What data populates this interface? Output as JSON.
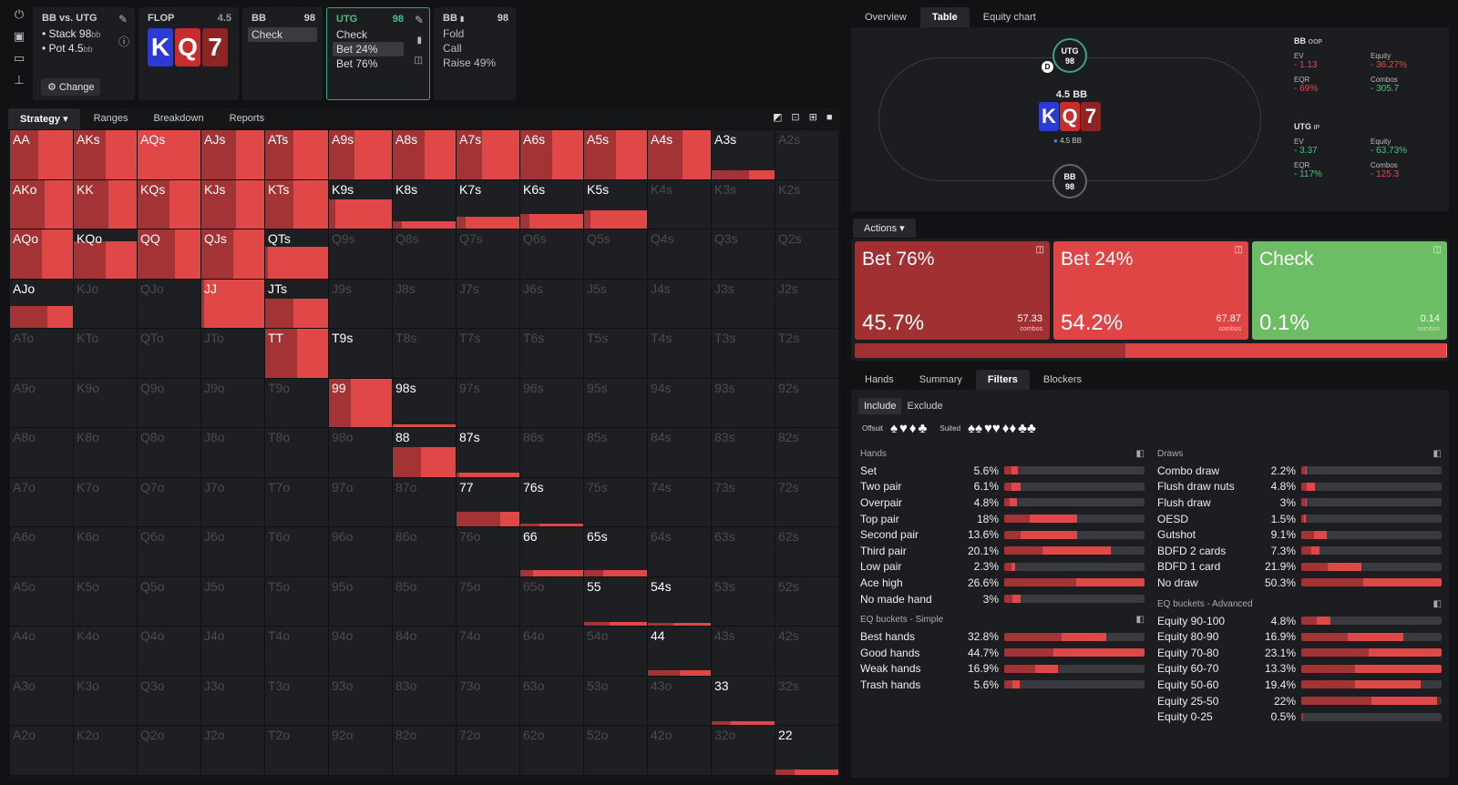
{
  "players_box": {
    "title": "BB vs. UTG",
    "stack": "Stack 98",
    "stack_unit": "bb",
    "pot": "Pot 4.5",
    "pot_unit": "bb",
    "change": "Change"
  },
  "flop_box": {
    "title": "FLOP",
    "pot": "4.5",
    "cards": [
      "K",
      "Q",
      "7"
    ]
  },
  "bb_box": {
    "title": "BB",
    "stack": "98",
    "action": "Check"
  },
  "utg_box": {
    "title": "UTG",
    "stack": "98",
    "actions": [
      "Check",
      "Bet 24%",
      "Bet 76%"
    ]
  },
  "bb2_box": {
    "title": "BB",
    "stack": "98",
    "actions": [
      "Fold",
      "Call",
      "Raise 49%"
    ]
  },
  "left_tabs": [
    "Strategy",
    "Ranges",
    "Breakdown",
    "Reports"
  ],
  "right_tabs": [
    "Overview",
    "Table",
    "Equity chart"
  ],
  "grid": [
    [
      "AA",
      "AKs",
      "AQs",
      "AJs",
      "ATs",
      "A9s",
      "A8s",
      "A7s",
      "A6s",
      "A5s",
      "A4s",
      "A3s",
      "A2s"
    ],
    [
      "AKo",
      "KK",
      "KQs",
      "KJs",
      "KTs",
      "K9s",
      "K8s",
      "K7s",
      "K6s",
      "K5s",
      "K4s",
      "K3s",
      "K2s"
    ],
    [
      "AQo",
      "KQo",
      "QQ",
      "QJs",
      "QTs",
      "Q9s",
      "Q8s",
      "Q7s",
      "Q6s",
      "Q5s",
      "Q4s",
      "Q3s",
      "Q2s"
    ],
    [
      "AJo",
      "KJo",
      "QJo",
      "JJ",
      "JTs",
      "J9s",
      "J8s",
      "J7s",
      "J6s",
      "J5s",
      "J4s",
      "J3s",
      "J2s"
    ],
    [
      "ATo",
      "KTo",
      "QTo",
      "JTo",
      "TT",
      "T9s",
      "T8s",
      "T7s",
      "T6s",
      "T5s",
      "T4s",
      "T3s",
      "T2s"
    ],
    [
      "A9o",
      "K9o",
      "Q9o",
      "J9o",
      "T9o",
      "99",
      "98s",
      "97s",
      "96s",
      "95s",
      "94s",
      "93s",
      "92s"
    ],
    [
      "A8o",
      "K8o",
      "Q8o",
      "J8o",
      "T8o",
      "98o",
      "88",
      "87s",
      "86s",
      "85s",
      "84s",
      "83s",
      "82s"
    ],
    [
      "A7o",
      "K7o",
      "Q7o",
      "J7o",
      "T7o",
      "97o",
      "87o",
      "77",
      "76s",
      "75s",
      "74s",
      "73s",
      "72s"
    ],
    [
      "A6o",
      "K6o",
      "Q6o",
      "J6o",
      "T6o",
      "96o",
      "86o",
      "76o",
      "66",
      "65s",
      "64s",
      "63s",
      "62s"
    ],
    [
      "A5o",
      "K5o",
      "Q5o",
      "J5o",
      "T5o",
      "95o",
      "85o",
      "75o",
      "65o",
      "55",
      "54s",
      "53s",
      "52s"
    ],
    [
      "A4o",
      "K4o",
      "Q4o",
      "J4o",
      "T4o",
      "94o",
      "84o",
      "74o",
      "64o",
      "54o",
      "44",
      "43s",
      "42s"
    ],
    [
      "A3o",
      "K3o",
      "Q3o",
      "J3o",
      "T3o",
      "93o",
      "83o",
      "73o",
      "63o",
      "53o",
      "43o",
      "33",
      "32s"
    ],
    [
      "A2o",
      "K2o",
      "Q2o",
      "J2o",
      "T2o",
      "92o",
      "82o",
      "72o",
      "62o",
      "52o",
      "42o",
      "32o",
      "22"
    ]
  ],
  "table": {
    "utg_seat": "UTG",
    "utg_stack": "98",
    "bb_seat": "BB",
    "bb_stack": "98",
    "pot": "4.5 BB",
    "pot_chip": "4.5 BB",
    "dealer": "D",
    "cards": [
      "K",
      "Q",
      "7"
    ]
  },
  "bb_stats": {
    "header": "BB",
    "pos": "OOP",
    "ev_label": "EV",
    "ev": "- 1.13",
    "eq_label": "Equity",
    "eq": "- 36.27%",
    "eqr_label": "EQR",
    "eqr": "- 69%",
    "combos_label": "Combos",
    "combos": "- 305.7"
  },
  "utg_stats": {
    "header": "UTG",
    "pos": "IP",
    "ev_label": "EV",
    "ev": "- 3.37",
    "eq_label": "Equity",
    "eq": "- 63.73%",
    "eqr_label": "EQR",
    "eqr": "- 117%",
    "combos_label": "Combos",
    "combos": "- 125.3"
  },
  "actions_label": "Actions",
  "action_boxes": [
    {
      "name": "Bet 76%",
      "pct": "45.7%",
      "combos": "57.33",
      "unit": "combos",
      "color": "#a03031"
    },
    {
      "name": "Bet 24%",
      "pct": "54.2%",
      "combos": "67.87",
      "unit": "combos",
      "color": "#e04545"
    },
    {
      "name": "Check",
      "pct": "0.1%",
      "combos": "0.14",
      "unit": "combos",
      "color": "#6cbd63"
    }
  ],
  "action_split": [
    45.7,
    54.2,
    0.1
  ],
  "bottom_tabs": [
    "Hands",
    "Summary",
    "Filters",
    "Blockers"
  ],
  "include": "Include",
  "exclude": "Exclude",
  "offsuit": "Offsuit",
  "suited": "Suited",
  "hands_title": "Hands",
  "hands": [
    {
      "n": "Set",
      "v": "5.6%",
      "a": 5,
      "b": 5
    },
    {
      "n": "Two pair",
      "v": "6.1%",
      "a": 5,
      "b": 7
    },
    {
      "n": "Overpair",
      "v": "4.8%",
      "a": 4,
      "b": 5
    },
    {
      "n": "Top pair",
      "v": "18%",
      "a": 18,
      "b": 34
    },
    {
      "n": "Second pair",
      "v": "13.6%",
      "a": 12,
      "b": 40
    },
    {
      "n": "Third pair",
      "v": "20.1%",
      "a": 27,
      "b": 49
    },
    {
      "n": "Low pair",
      "v": "2.3%",
      "a": 5,
      "b": 3
    },
    {
      "n": "Ace high",
      "v": "26.6%",
      "a": 51,
      "b": 49
    },
    {
      "n": "No made hand",
      "v": "3%",
      "a": 6,
      "b": 6
    }
  ],
  "eqs_title": "EQ buckets - Simple",
  "eqs": [
    {
      "n": "Best hands",
      "v": "32.8%",
      "a": 41,
      "b": 32
    },
    {
      "n": "Good hands",
      "v": "44.7%",
      "a": 35,
      "b": 65
    },
    {
      "n": "Weak hands",
      "v": "16.9%",
      "a": 22,
      "b": 16
    },
    {
      "n": "Trash hands",
      "v": "5.6%",
      "a": 6,
      "b": 5
    }
  ],
  "draws_title": "Draws",
  "draws": [
    {
      "n": "Combo draw",
      "v": "2.2%",
      "a": 3,
      "b": 1
    },
    {
      "n": "Flush draw nuts",
      "v": "4.8%",
      "a": 4,
      "b": 6
    },
    {
      "n": "Flush draw",
      "v": "3%",
      "a": 3,
      "b": 1
    },
    {
      "n": "OESD",
      "v": "1.5%",
      "a": 2,
      "b": 1
    },
    {
      "n": "Gutshot",
      "v": "9.1%",
      "a": 9,
      "b": 9
    },
    {
      "n": "BDFD 2 cards",
      "v": "7.3%",
      "a": 7,
      "b": 6
    },
    {
      "n": "BDFD 1 card",
      "v": "21.9%",
      "a": 19,
      "b": 24
    },
    {
      "n": "No draw",
      "v": "50.3%",
      "a": 44,
      "b": 56
    }
  ],
  "eqa_title": "EQ buckets - Advanced",
  "eqa": [
    {
      "n": "Equity 90-100",
      "v": "4.8%",
      "a": 11,
      "b": 10
    },
    {
      "n": "Equity 80-90",
      "v": "16.9%",
      "a": 33,
      "b": 40
    },
    {
      "n": "Equity 70-80",
      "v": "23.1%",
      "a": 48,
      "b": 52
    },
    {
      "n": "Equity 60-70",
      "v": "13.3%",
      "a": 38,
      "b": 62
    },
    {
      "n": "Equity 50-60",
      "v": "19.4%",
      "a": 38,
      "b": 47
    },
    {
      "n": "Equity 25-50",
      "v": "22%",
      "a": 50,
      "b": 47
    },
    {
      "n": "Equity 0-25",
      "v": "0.5%",
      "a": 1,
      "b": 0
    }
  ],
  "colors": {
    "dark_red": "#a33334",
    "red": "#e04747",
    "green": "#6cbd63"
  }
}
